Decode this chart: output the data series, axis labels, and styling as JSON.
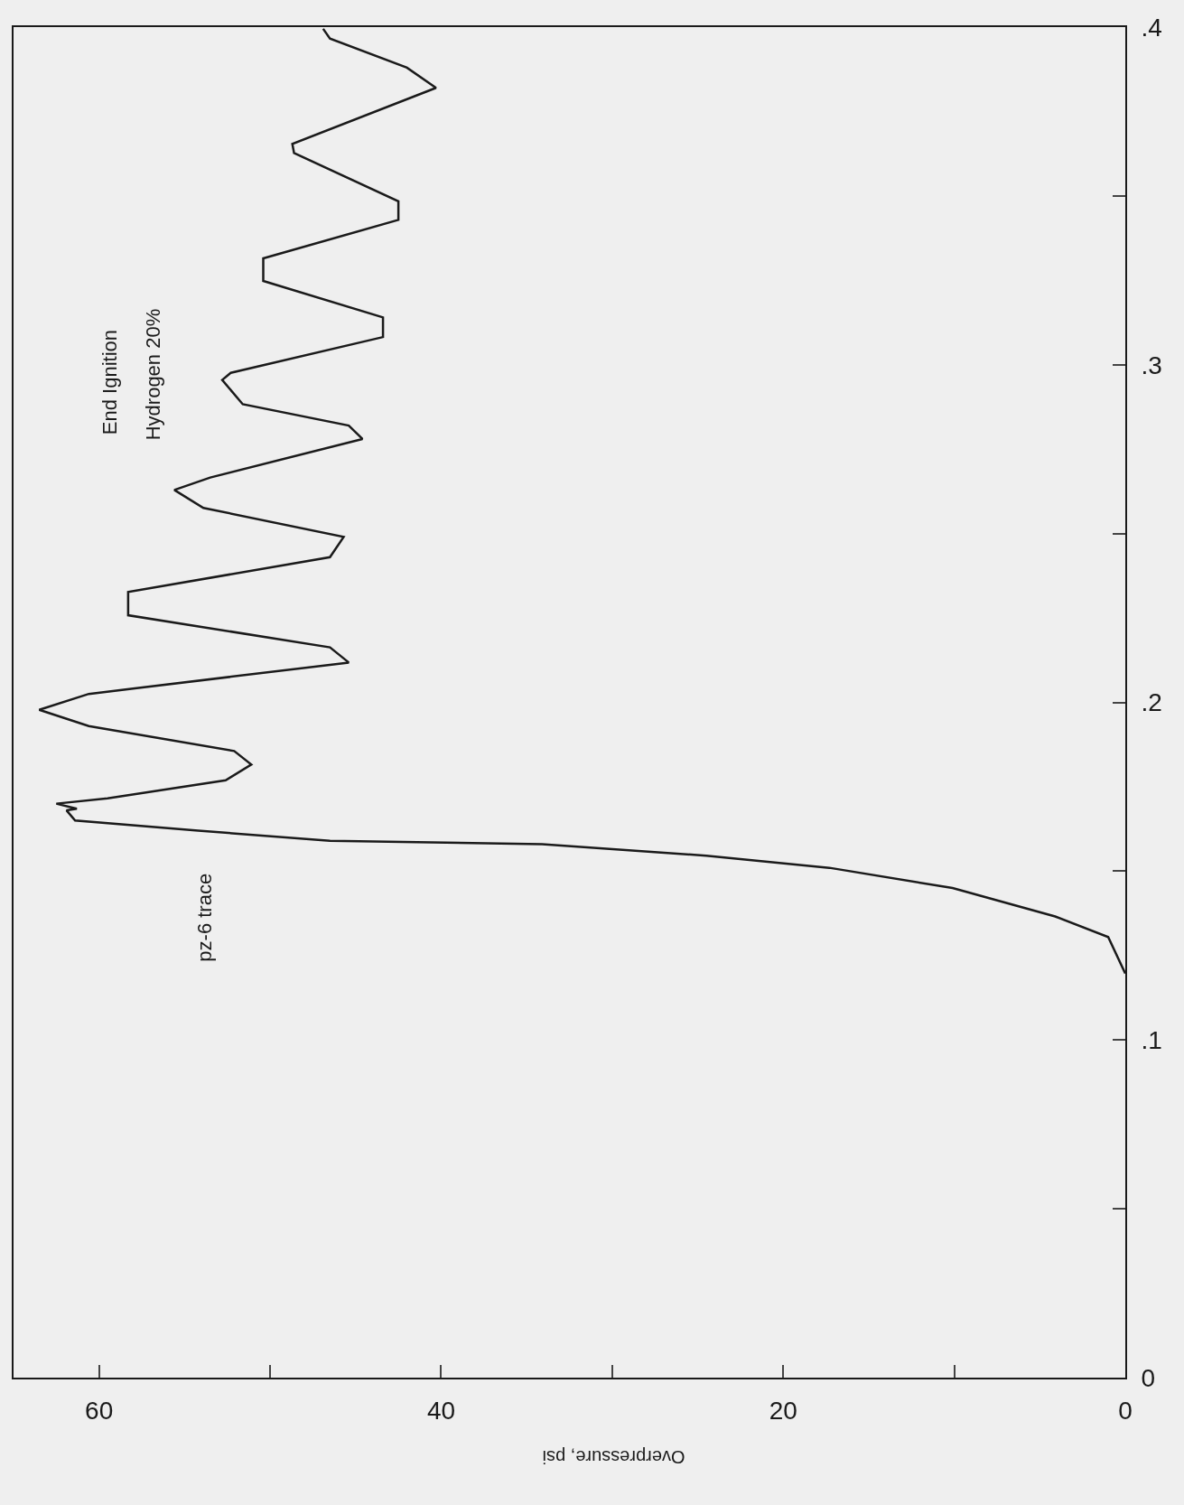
{
  "chart_data": {
    "type": "line",
    "xlabel": "Overpressure, psi",
    "annotations": [
      "End Ignition",
      "Hydrogen 20%",
      "pz-6 trace"
    ],
    "series": [
      {
        "color": "#1a1a1a",
        "x": [
          0,
          1.0,
          4.1,
          10.1,
          17.3,
          24.5,
          34.1,
          46.5,
          54.2,
          61.4,
          61.9,
          61.3,
          62.5,
          59.5,
          52.6,
          51.1,
          52.1,
          60.6,
          63.5,
          60.6,
          45.4,
          46.5,
          58.3,
          58.3,
          46.5,
          45.7,
          53.9,
          55.6,
          53.5,
          44.6,
          45.4,
          51.6,
          52.8,
          52.3,
          43.4,
          43.4,
          50.4,
          50.4,
          42.5,
          42.5,
          48.6,
          48.7,
          40.3,
          42.0,
          46.5,
          46.9
        ],
        "values": [
          0.1197,
          0.1305,
          0.1366,
          0.145,
          0.151,
          0.1546,
          0.158,
          0.159,
          0.162,
          0.165,
          0.168,
          0.1685,
          0.17,
          0.1716,
          0.1769,
          0.1816,
          0.1856,
          0.193,
          0.1978,
          0.2025,
          0.2118,
          0.2163,
          0.2258,
          0.2327,
          0.243,
          0.249,
          0.2576,
          0.2629,
          0.2666,
          0.278,
          0.282,
          0.2883,
          0.2955,
          0.2976,
          0.3082,
          0.314,
          0.3248,
          0.3315,
          0.3429,
          0.3484,
          0.3627,
          0.3654,
          0.382,
          0.388,
          0.3966,
          0.3995
        ]
      }
    ],
    "xlim": [
      65,
      0
    ],
    "xticks": [
      0,
      {
        "value": 10,
        "label": null
      },
      20,
      {
        "value": 30,
        "label": null
      },
      40,
      {
        "value": 50,
        "label": null
      },
      60
    ],
    "ylim": [
      0,
      0.4
    ],
    "yticks": [
      0,
      {
        "value": 0.05,
        "label": null
      },
      {
        "value": 0.1,
        "label": ".1"
      },
      {
        "value": 0.15,
        "label": null
      },
      {
        "value": 0.2,
        "label": ".2"
      },
      {
        "value": 0.25,
        "label": null
      },
      {
        "value": 0.3,
        "label": ".3"
      },
      {
        "value": 0.35,
        "label": null
      },
      {
        "value": 0.4,
        "label": ".4"
      }
    ],
    "grid": false,
    "marker": "none",
    "line_style": "solid"
  }
}
